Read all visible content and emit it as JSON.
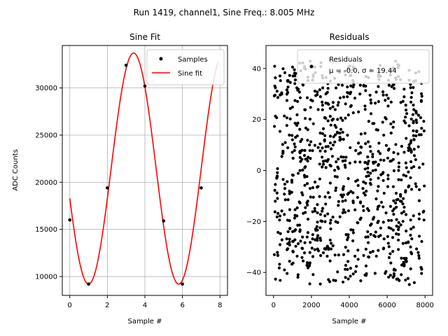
{
  "figure": {
    "suptitle": "Run 1419, channel1, Sine Freq.: 8.005 MHz"
  },
  "colors": {
    "fit": "#ff0000",
    "points": "#000000",
    "grid": "#b0b0b0"
  },
  "chart_data": [
    {
      "type": "line",
      "title": "Sine Fit",
      "xlabel": "Sample #",
      "ylabel": "ADC Counts",
      "xlim": [
        -0.4,
        8.4
      ],
      "ylim": [
        8000,
        34500
      ],
      "xticks": [
        0,
        2,
        4,
        6,
        8
      ],
      "yticks": [
        10000,
        15000,
        20000,
        25000,
        30000
      ],
      "xtick_labels": [
        "0",
        "2",
        "4",
        "6",
        "8"
      ],
      "ytick_labels": [
        "10000",
        "15000",
        "20000",
        "25000",
        "30000"
      ],
      "grid": true,
      "legend_position": "top-right",
      "series": [
        {
          "name": "Samples",
          "kind": "scatter",
          "color": "#000000",
          "x": [
            0,
            1,
            2,
            3,
            4,
            5,
            6,
            7
          ],
          "y": [
            16000,
            9200,
            19400,
            32400,
            30200,
            15900,
            9200,
            19400
          ]
        },
        {
          "name": "Sine fit",
          "kind": "line",
          "color": "#ff0000",
          "x_range": [
            0,
            7.9
          ],
          "model": {
            "offset": 21450,
            "amplitude": 12250,
            "period": 4.8,
            "x_at_peak": 3.4
          }
        }
      ]
    },
    {
      "type": "scatter",
      "title": "Residuals",
      "xlabel": "Sample #",
      "ylabel": "",
      "xlim": [
        -400,
        8400
      ],
      "ylim": [
        -49,
        49
      ],
      "xticks": [
        0,
        2000,
        4000,
        6000,
        8000
      ],
      "yticks": [
        -40,
        -20,
        0,
        20,
        40
      ],
      "xtick_labels": [
        "0",
        "2000",
        "4000",
        "6000",
        "8000"
      ],
      "ytick_labels": [
        "−40",
        "−20",
        "0",
        "20",
        "40"
      ],
      "grid": false,
      "legend_position": "top-right",
      "series": [
        {
          "name": "Residuals",
          "kind": "scatter",
          "color": "#000000",
          "x_range": [
            0,
            8000
          ],
          "count": 900,
          "min": -45,
          "max": 43,
          "mean": -0.0,
          "sigma": 19.44,
          "note_label": "μ = -0.0, σ = 19.44"
        }
      ]
    }
  ]
}
